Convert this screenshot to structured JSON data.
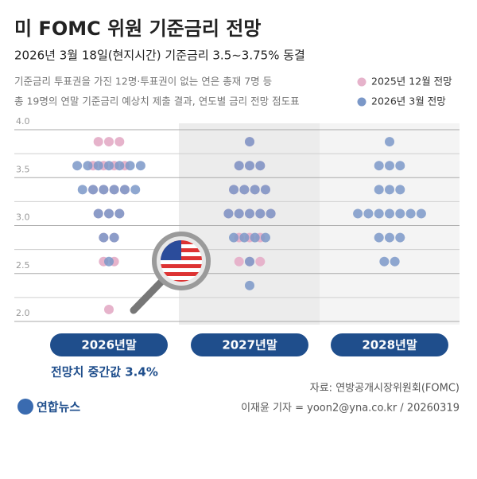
{
  "title": "미 FOMC 위원 기준금리 전망",
  "subtitle": "2026년 3월 18일(현지시간) 기준금리 3.5~3.75% 동결",
  "description": [
    "기준금리 투표권을 가진 12명·투표권이 없는 연은 총재 7명 등",
    "총 19명의 연말 기준금리 예상치 제출 결과, 연도별 금리 전망 점도표"
  ],
  "chart_data": {
    "type": "dot",
    "categories": [
      "2026년말",
      "2027년말",
      "2028년말"
    ],
    "levels": [
      3.875,
      3.625,
      3.375,
      3.125,
      2.875,
      2.625,
      2.375,
      2.125
    ],
    "series": [
      {
        "name": "2025년 12월 전망",
        "color": "#e6b3cb",
        "counts": [
          [
            3,
            4,
            4,
            3,
            2,
            2,
            0,
            1
          ],
          [
            1,
            3,
            4,
            5,
            3,
            3,
            0,
            0
          ],
          [
            0,
            0,
            0,
            0,
            0,
            0,
            0,
            0
          ]
        ]
      },
      {
        "name": "2026년 3월 전망",
        "color": "#7b98c8",
        "counts": [
          [
            0,
            7,
            6,
            3,
            2,
            1,
            0,
            0
          ],
          [
            1,
            3,
            4,
            5,
            4,
            1,
            1,
            0
          ],
          [
            1,
            3,
            3,
            7,
            3,
            2,
            0,
            0
          ]
        ]
      }
    ],
    "ylim": [
      2,
      4
    ],
    "yticks": [
      {
        "value": 4,
        "label": "4.0"
      },
      3.5,
      {
        "value": 3,
        "label": "3.0"
      },
      2.5,
      {
        "value": 2,
        "label": "2.0"
      }
    ],
    "minor_yticks": [
      3.75,
      3.25,
      2.75,
      2.25
    ],
    "annotation": "전망치 중간값 3.4%"
  },
  "source": "자료: 연방공개시장위원회(FOMC)",
  "byline": "이재윤 기자 = yoon2@yna.co.kr / 20260319",
  "logo": "연합뉴스"
}
